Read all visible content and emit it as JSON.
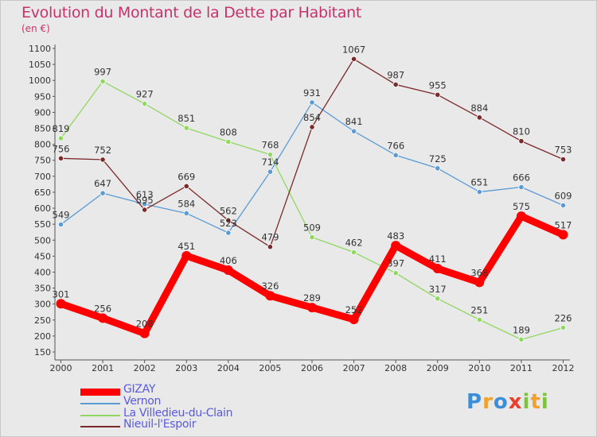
{
  "title": "Evolution du Montant de la Dette par Habitant",
  "subtitle": "(en €)",
  "logo_text": "Proxiti",
  "chart_data": {
    "type": "line",
    "title": "Evolution du Montant de la Dette par Habitant",
    "subtitle": "(en €)",
    "x": [
      "2000",
      "2001",
      "2002",
      "2003",
      "2004",
      "2005",
      "2006",
      "2007",
      "2008",
      "2009",
      "2010",
      "2011",
      "2012"
    ],
    "ylim": [
      150,
      1100
    ],
    "yticks": [
      150,
      200,
      250,
      300,
      350,
      400,
      450,
      500,
      550,
      600,
      650,
      700,
      750,
      800,
      850,
      900,
      950,
      1000,
      1050,
      1100
    ],
    "grid": false,
    "legend_placement": "bottom-left",
    "series": [
      {
        "name": "GIZAY",
        "color": "#ff0000",
        "values": [
          301,
          256,
          208,
          451,
          406,
          326,
          289,
          252,
          483,
          411,
          368,
          575,
          517
        ],
        "labels": [
          "301",
          "256",
          "208",
          "451",
          "406",
          "326",
          "289",
          "252",
          "483",
          "411",
          "368",
          "575",
          "517"
        ]
      },
      {
        "name": "Vernon",
        "color": "#5b9bd5",
        "values": [
          549,
          647,
          613,
          584,
          523,
          714,
          931,
          841,
          766,
          725,
          651,
          666,
          609
        ],
        "labels": [
          "549",
          "647",
          "613",
          "584",
          "523",
          "714",
          "931",
          "841",
          "766",
          "725",
          "651",
          "666",
          "609"
        ]
      },
      {
        "name": "La Villedieu-du-Clain",
        "color": "#90d860",
        "values": [
          819,
          997,
          927,
          851,
          808,
          768,
          509,
          462,
          397,
          317,
          251,
          189,
          226
        ],
        "labels": [
          "819",
          "997",
          "927",
          "851",
          "808",
          "768",
          "509",
          "462",
          "397",
          "317",
          "251",
          "189",
          "226"
        ]
      },
      {
        "name": "Nieuil-l'Espoir",
        "color": "#7b2a2a",
        "values": [
          756,
          752,
          595,
          669,
          562,
          479,
          854,
          1067,
          987,
          955,
          884,
          810,
          753
        ],
        "labels": [
          "756",
          "752",
          "595",
          "669",
          "562",
          "479",
          "854",
          "1067",
          "987",
          "955",
          "884",
          "810",
          "753"
        ]
      }
    ]
  }
}
